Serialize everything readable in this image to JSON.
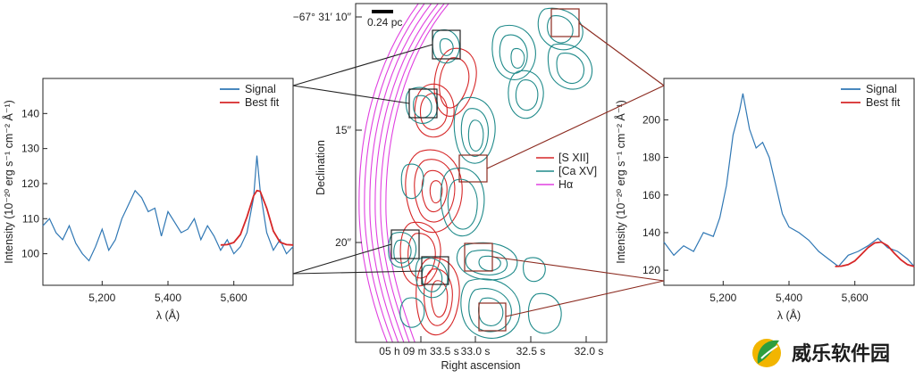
{
  "chart_data": [
    {
      "type": "line",
      "panel": "left",
      "xlabel": "λ (Å)",
      "ylabel": "Intensity (10⁻²⁰ erg s⁻¹ cm⁻² Å⁻¹)",
      "xlim": [
        5020,
        5780
      ],
      "ylim": [
        91,
        150
      ],
      "xticks": [
        5200,
        5400,
        5600
      ],
      "xtick_labels": [
        "5,200",
        "5,400",
        "5,600"
      ],
      "yticks": [
        100,
        110,
        120,
        130,
        140
      ],
      "legend": "top-right",
      "series": [
        {
          "name": "Signal",
          "color": "#2f77b4",
          "x": [
            5020,
            5040,
            5060,
            5080,
            5100,
            5120,
            5140,
            5160,
            5180,
            5200,
            5220,
            5240,
            5260,
            5280,
            5300,
            5320,
            5340,
            5360,
            5380,
            5400,
            5420,
            5440,
            5460,
            5480,
            5500,
            5520,
            5540,
            5560,
            5580,
            5600,
            5620,
            5640,
            5660,
            5670,
            5680,
            5700,
            5720,
            5740,
            5760,
            5780
          ],
          "y": [
            108,
            110,
            106,
            104,
            108,
            103,
            100,
            98,
            102,
            107,
            101,
            104,
            110,
            114,
            118,
            116,
            112,
            113,
            105,
            112,
            109,
            106,
            107,
            110,
            104,
            108,
            105,
            101,
            104,
            100,
            102,
            106,
            116,
            128,
            118,
            106,
            101,
            104,
            100,
            102
          ]
        },
        {
          "name": "Best fit",
          "color": "#d62728",
          "x": [
            5560,
            5580,
            5600,
            5620,
            5640,
            5660,
            5670,
            5680,
            5700,
            5720,
            5740,
            5760,
            5780
          ],
          "y": [
            102.5,
            102.6,
            103.2,
            105.5,
            110.5,
            116.5,
            118,
            117.8,
            113,
            106.5,
            103.3,
            102.6,
            102.5
          ]
        }
      ]
    },
    {
      "type": "line",
      "panel": "right",
      "xlabel": "λ (Å)",
      "ylabel": "Intensity (10⁻²⁰ erg s⁻¹ cm⁻² Å⁻¹)",
      "xlim": [
        5020,
        5780
      ],
      "ylim": [
        112,
        222
      ],
      "xticks": [
        5200,
        5400,
        5600
      ],
      "xtick_labels": [
        "5,200",
        "5,400",
        "5,600"
      ],
      "yticks": [
        120,
        140,
        160,
        180,
        200
      ],
      "legend": "top-right",
      "series": [
        {
          "name": "Signal",
          "color": "#2f77b4",
          "x": [
            5020,
            5050,
            5080,
            5110,
            5140,
            5170,
            5190,
            5210,
            5230,
            5250,
            5260,
            5280,
            5300,
            5320,
            5340,
            5360,
            5380,
            5400,
            5430,
            5460,
            5490,
            5520,
            5550,
            5580,
            5610,
            5640,
            5670,
            5700,
            5730,
            5760,
            5780
          ],
          "y": [
            135,
            128,
            133,
            130,
            140,
            138,
            148,
            165,
            192,
            205,
            214,
            195,
            185,
            188,
            180,
            165,
            150,
            143,
            140,
            136,
            130,
            126,
            122,
            128,
            130,
            133,
            137,
            132,
            130,
            126,
            122
          ]
        },
        {
          "name": "Best fit",
          "color": "#d62728",
          "x": [
            5540,
            5560,
            5580,
            5600,
            5620,
            5640,
            5660,
            5680,
            5700,
            5720,
            5740,
            5760,
            5780
          ],
          "y": [
            122,
            122.2,
            123,
            125,
            128.5,
            132,
            134.5,
            135,
            133,
            129,
            125.5,
            123,
            122
          ]
        }
      ]
    },
    {
      "type": "contour",
      "panel": "center",
      "xlabel": "Right ascension",
      "ylabel": "Declination",
      "xtick_labels": [
        "05 h 09 m 33.5 s",
        "33.0 s",
        "32.5 s",
        "32.0 s"
      ],
      "ytick_labels": [
        "−67° 31′ 10′′",
        "15′′",
        "20′′"
      ],
      "scalebar_label": "0.24 pc",
      "legend": "center-right",
      "series": [
        {
          "name": "[S XII]",
          "color": "#d62728"
        },
        {
          "name": "[Ca XV]",
          "color": "#1f8a8a"
        },
        {
          "name": "Hα",
          "color": "#e040e0"
        }
      ]
    }
  ],
  "watermark": {
    "text": "威乐软件园"
  }
}
